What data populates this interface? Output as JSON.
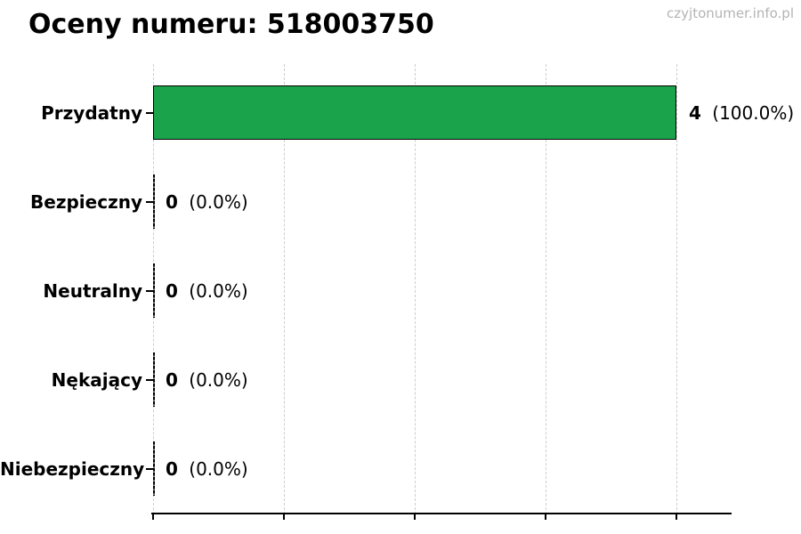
{
  "page": {
    "watermark": "czyjtonumer.info.pl"
  },
  "chart_data": {
    "type": "bar",
    "orientation": "horizontal",
    "title": "Oceny numeru: 518003750",
    "categories": [
      "Przydatny",
      "Bezpieczny",
      "Neutralny",
      "Nękający",
      "Niebezpieczny"
    ],
    "values": [
      4,
      0,
      0,
      0,
      0
    ],
    "value_labels": [
      "4",
      "0",
      "0",
      "0",
      "0"
    ],
    "pct_labels": [
      "(100.0%)",
      "(0.0%)",
      "(0.0%)",
      "(0.0%)",
      "(0.0%)"
    ],
    "xlabel": "",
    "ylabel": "",
    "xticks": [
      0,
      1,
      2,
      3,
      4
    ],
    "xlim": [
      0,
      4.4
    ],
    "grid": {
      "axis": "x",
      "style": "dashed",
      "color": "#cdcdcd"
    },
    "legend": "none",
    "bar_color": "#1aa34a",
    "bar_edge_color": "#000000"
  }
}
